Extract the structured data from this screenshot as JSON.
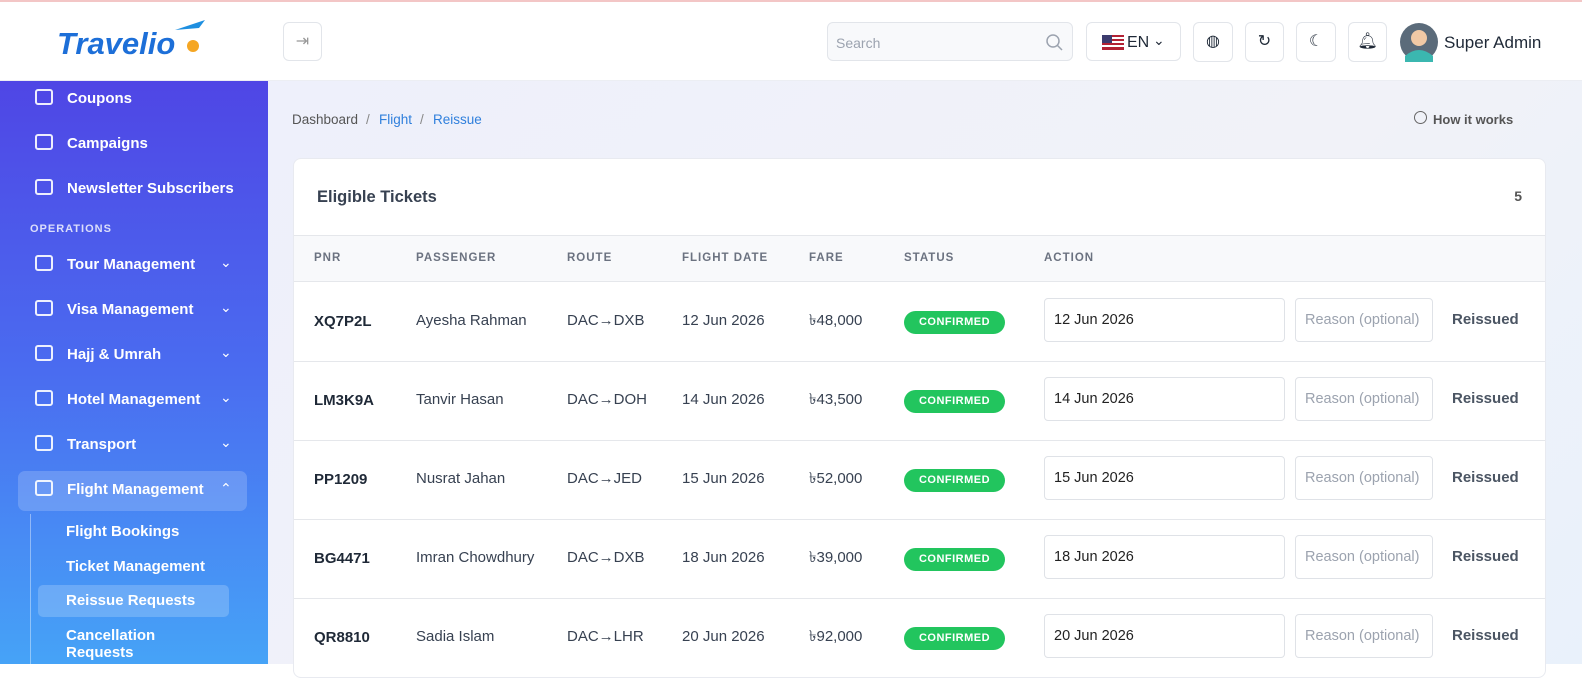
{
  "header": {
    "logo": "Travelio",
    "search_placeholder": "Search",
    "language": "EN",
    "user": "Super Admin"
  },
  "sidebar": {
    "links": [
      "Coupons",
      "Campaigns",
      "Newsletter Subscribers"
    ],
    "section_title": "OPERATIONS",
    "menus": [
      "Tour Management",
      "Visa Management",
      "Hajj & Umrah",
      "Hotel Management",
      "Transport",
      "Flight Management"
    ],
    "submenu": [
      "Flight Bookings",
      "Ticket Management",
      "Reissue Requests",
      "Cancellation Requests"
    ]
  },
  "breadcrumb": [
    "Dashboard",
    "Flight",
    "Reissue"
  ],
  "help": "How it works",
  "card": {
    "title": "Eligible Tickets",
    "count": 5,
    "columns": [
      "PNR",
      "PASSENGER",
      "ROUTE",
      "FLIGHT DATE",
      "FARE",
      "STATUS",
      "ACTION"
    ],
    "rows": [
      [
        "XQ7P2L",
        "Ayesha Rahman",
        "DAC→DXB",
        "12 Jun 2026",
        "৳48,000",
        "CONFIRMED",
        "12 Jun 2026",
        "Reason (optional)",
        "Reissued"
      ],
      [
        "LM3K9A",
        "Tanvir Hasan",
        "DAC→DOH",
        "14 Jun 2026",
        "৳43,500",
        "CONFIRMED",
        "14 Jun 2026",
        "Reason (optional)",
        "Reissued"
      ],
      [
        "PP1209",
        "Nusrat Jahan",
        "DAC→JED",
        "15 Jun 2026",
        "৳52,000",
        "CONFIRMED",
        "15 Jun 2026",
        "Reason (optional)",
        "Reissued"
      ],
      [
        "BG4471",
        "Imran Chowdhury",
        "DAC→DXB",
        "18 Jun 2026",
        "৳39,000",
        "CONFIRMED",
        "18 Jun 2026",
        "Reason (optional)",
        "Reissued"
      ],
      [
        "QR8810",
        "Sadia Islam",
        "DAC→LHR",
        "20 Jun 2026",
        "৳92,000",
        "CONFIRMED",
        "20 Jun 2026",
        "Reason (optional)",
        "Reissued"
      ]
    ]
  }
}
